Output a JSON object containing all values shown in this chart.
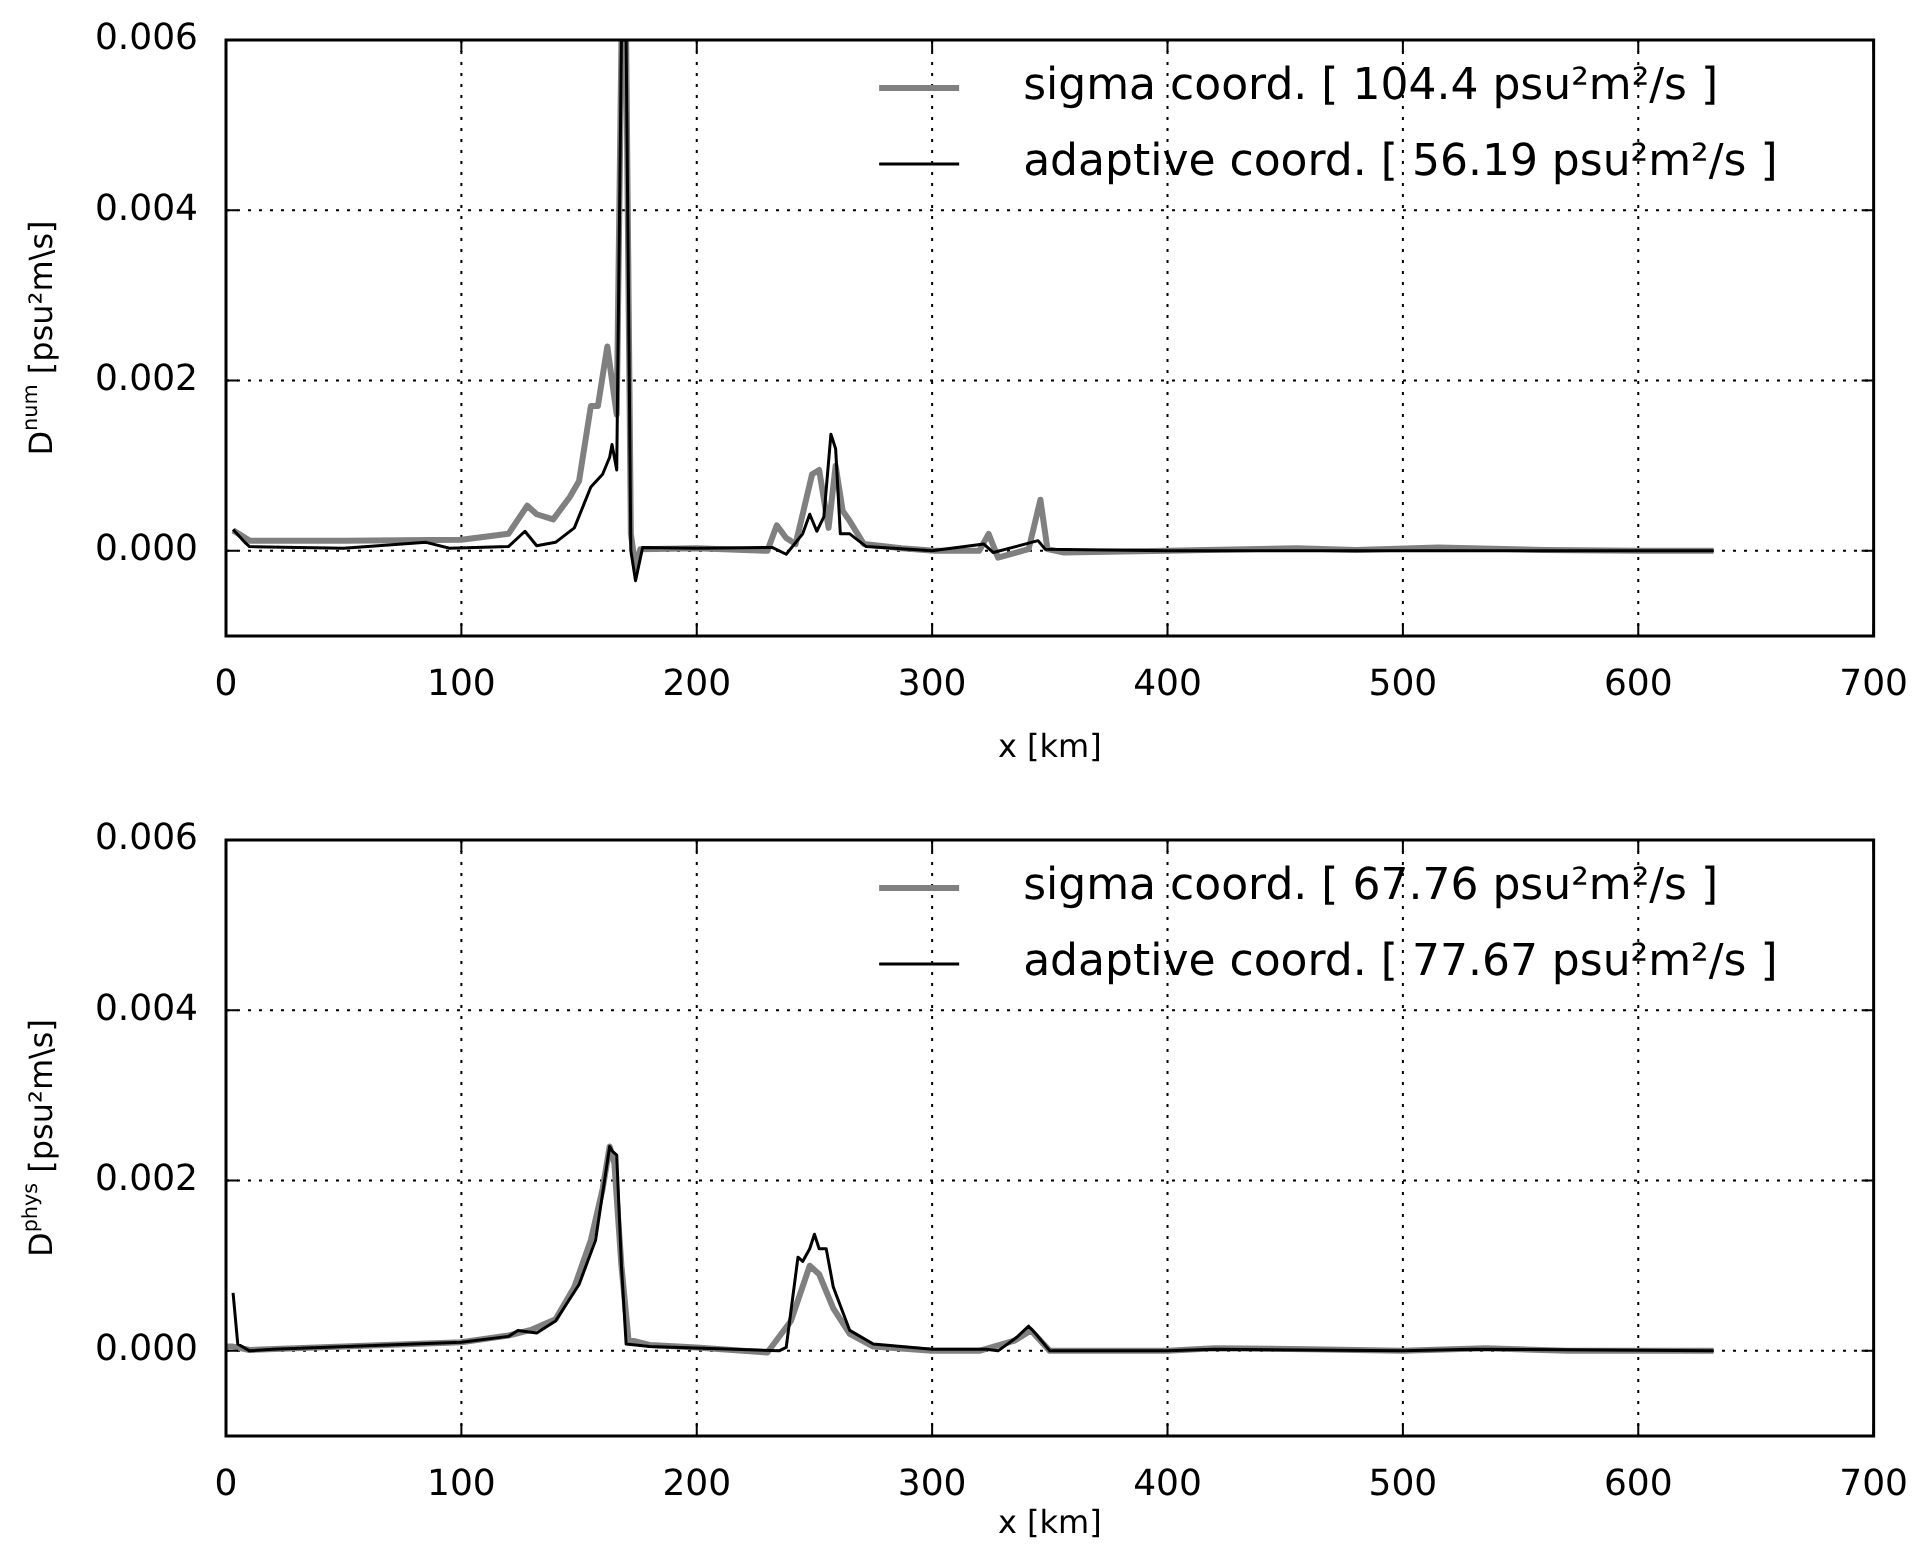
{
  "chart_data": [
    {
      "type": "line",
      "ylabel": "D$^{num}$ [psu²m\\s]",
      "xlabel": "x [km]",
      "xlim": [
        0,
        700
      ],
      "xticks": [
        0,
        100,
        200,
        300,
        400,
        500,
        600,
        700
      ],
      "ylim": [
        -0.001,
        0.006
      ],
      "yticks": [
        {
          "value": 0,
          "label": "0.000"
        },
        {
          "value": 0.002,
          "label": "0.002"
        },
        {
          "value": 0.004,
          "label": "0.004"
        },
        {
          "value": 0.006,
          "label": "0.006"
        }
      ],
      "grid": true,
      "legend": "top right",
      "line_style": "solid",
      "marker": "none",
      "series": [
        {
          "name": "sigma coord. [ 104.4 psu²m²/s ]",
          "color": "#808080",
          "x": [
            3,
            10,
            50,
            100,
            120,
            128,
            132,
            139,
            146,
            150,
            155,
            158,
            162,
            166,
            168,
            170,
            172,
            174,
            176,
            200,
            230,
            234,
            238,
            242,
            249,
            252,
            256,
            259,
            262,
            265,
            271,
            287,
            301,
            320,
            324,
            328,
            341,
            346,
            349,
            356,
            400,
            455,
            480,
            515,
            560,
            600,
            632
          ],
          "values": [
            0.00024,
            0.00012,
            0.00012,
            0.00013,
            0.0002,
            0.00053,
            0.00043,
            0.00037,
            0.00063,
            0.00082,
            0.0017,
            0.0017,
            0.0024,
            0.0016,
            0.006,
            0.006,
            0.0002,
            -0.0002,
            2e-05,
            3e-05,
            0,
            0.0003,
            0.00015,
            8e-05,
            0.0009,
            0.00095,
            0.00027,
            0.001,
            0.00047,
            0.00035,
            8e-05,
            3e-05,
            0,
            0,
            0.0002,
            -8e-05,
            2e-05,
            0.0006,
            2e-05,
            -2e-05,
            0,
            3e-05,
            1e-05,
            4e-05,
            1e-05,
            0,
            0
          ]
        },
        {
          "name": "adaptive coord. [ 56.19 psu²m²/s ]",
          "color": "#000000",
          "x": [
            3,
            8,
            10,
            50,
            85,
            95,
            120,
            127,
            132,
            140,
            148,
            155,
            160,
            163,
            164,
            166,
            168,
            170,
            172,
            174,
            177,
            200,
            232,
            238,
            245,
            248,
            251,
            254,
            257,
            259,
            261,
            265,
            272,
            300,
            322,
            326,
            345,
            348,
            400,
            500,
            632
          ],
          "values": [
            0.00025,
            0.0001,
            5e-05,
            3e-05,
            0.0001,
            3e-05,
            5e-05,
            0.00023,
            6e-05,
            0.0001,
            0.00027,
            0.00075,
            0.0009,
            0.0011,
            0.00125,
            0.00095,
            0.006,
            0.006,
            0,
            -0.00035,
            4e-05,
            3e-05,
            4e-05,
            -4e-05,
            0.0002,
            0.00043,
            0.00023,
            0.0004,
            0.00137,
            0.0012,
            0.0002,
            0.0002,
            5e-05,
            0,
            8e-05,
            -2e-05,
            0.00012,
            2e-05,
            0,
            0,
            0
          ]
        }
      ]
    },
    {
      "type": "line",
      "ylabel": "D$^{phys}$ [psu²m\\s]",
      "xlabel": "x [km]",
      "xlim": [
        0,
        700
      ],
      "xticks": [
        0,
        100,
        200,
        300,
        400,
        500,
        600,
        700
      ],
      "ylim": [
        -0.001,
        0.006
      ],
      "yticks": [
        {
          "value": 0,
          "label": "0.000"
        },
        {
          "value": 0.002,
          "label": "0.002"
        },
        {
          "value": 0.004,
          "label": "0.004"
        },
        {
          "value": 0.006,
          "label": "0.006"
        }
      ],
      "grid": true,
      "legend": "top right",
      "line_style": "solid",
      "marker": "none",
      "series": [
        {
          "name": "sigma coord. [ 67.76 psu²m²/s ]",
          "color": "#808080",
          "x": [
            0,
            3,
            10,
            50,
            100,
            120,
            130,
            140,
            148,
            155,
            160,
            163,
            165,
            168,
            171,
            180,
            200,
            230,
            240,
            248,
            252,
            258,
            265,
            275,
            300,
            320,
            335,
            342,
            350,
            400,
            420,
            460,
            500,
            535,
            570,
            632
          ],
          "values": [
            5e-05,
            5e-05,
            1e-05,
            5e-05,
            0.0001,
            0.00018,
            0.00025,
            0.00037,
            0.00075,
            0.0013,
            0.0019,
            0.0024,
            0.0022,
            0.001,
            0.00013,
            7e-05,
            4e-05,
            -2e-05,
            0.00035,
            0.001,
            0.0009,
            0.0005,
            0.0002,
            5e-05,
            0,
            0,
            0.00012,
            0.00024,
            0,
            0,
            3e-05,
            2e-05,
            0,
            3e-05,
            0,
            0
          ]
        },
        {
          "name": "adaptive coord. [ 77.67 psu²m²/s ]",
          "color": "#000000",
          "x": [
            3,
            5,
            10,
            20,
            100,
            120,
            124,
            132,
            140,
            150,
            157,
            163,
            164,
            166,
            168,
            170,
            180,
            235,
            238,
            243,
            245,
            248,
            250,
            252,
            255,
            258,
            265,
            275,
            300,
            323,
            328,
            336,
            341,
            344,
            350,
            400,
            420,
            500,
            530,
            632
          ],
          "values": [
            0.00068,
            8e-05,
            0,
            2e-05,
            0.0001,
            0.00017,
            0.00024,
            0.00021,
            0.00035,
            0.00078,
            0.0013,
            0.0024,
            0.00235,
            0.0023,
            0.001,
            8e-05,
            5e-05,
            0,
            4e-05,
            0.0011,
            0.00105,
            0.0012,
            0.00137,
            0.0012,
            0.0012,
            0.00075,
            0.00024,
            8e-05,
            2e-05,
            2e-05,
            0,
            0.00016,
            0.00029,
            0.0002,
            0,
            0,
            2e-05,
            0,
            2e-05,
            0
          ]
        }
      ]
    }
  ]
}
